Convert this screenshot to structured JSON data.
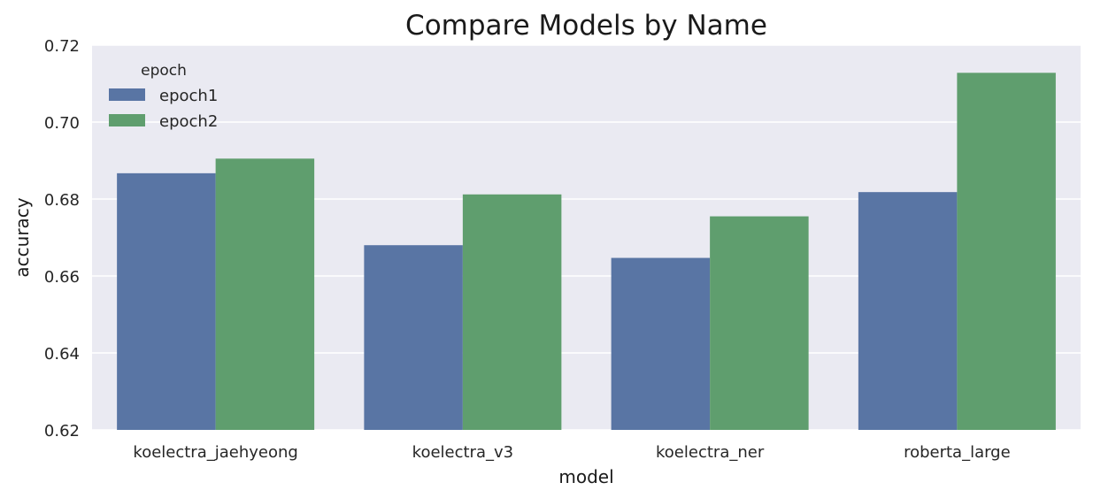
{
  "chart_data": {
    "type": "bar",
    "title": "Compare Models by Name",
    "xlabel": "model",
    "ylabel": "accuracy",
    "categories": [
      "koelectra_jaehyeong",
      "koelectra_v3",
      "koelectra_ner",
      "roberta_large"
    ],
    "series": [
      {
        "name": "epoch1",
        "color": "#5975a4",
        "values": [
          0.6867,
          0.668,
          0.6647,
          0.6818
        ]
      },
      {
        "name": "epoch2",
        "color": "#5f9e6e",
        "values": [
          0.6905,
          0.6812,
          0.6755,
          0.7128
        ]
      }
    ],
    "ylim": [
      0.62,
      0.72
    ],
    "yticks": [
      0.62,
      0.64,
      0.66,
      0.68,
      0.7,
      0.72
    ],
    "ytick_labels": [
      "0.62",
      "0.64",
      "0.66",
      "0.68",
      "0.70",
      "0.72"
    ],
    "legend": {
      "title": "epoch",
      "position": "top-left"
    },
    "grid": true,
    "background": "#eaeaf2"
  }
}
